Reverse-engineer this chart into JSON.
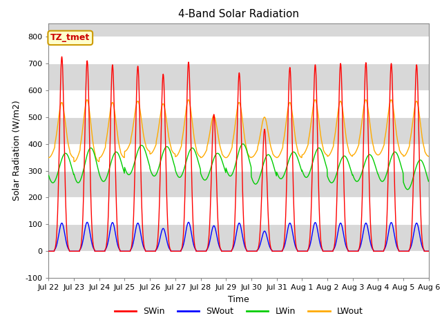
{
  "title": "4-Band Solar Radiation",
  "xlabel": "Time",
  "ylabel": "Solar Radiation (W/m2)",
  "ylim": [
    -100,
    850
  ],
  "yticks": [
    -100,
    0,
    100,
    200,
    300,
    400,
    500,
    600,
    700,
    800
  ],
  "x_tick_labels": [
    "Jul 22",
    "Jul 23",
    "Jul 24",
    "Jul 25",
    "Jul 26",
    "Jul 27",
    "Jul 28",
    "Jul 29",
    "Jul 30",
    "Jul 31",
    "Aug 1",
    "Aug 2",
    "Aug 3",
    "Aug 4",
    "Aug 5",
    "Aug 6"
  ],
  "colors": {
    "SWin": "#ff0000",
    "SWout": "#0000ff",
    "LWin": "#00cc00",
    "LWout": "#ffaa00"
  },
  "annotation_text": "TZ_tmet",
  "annotation_color": "#cc0000",
  "annotation_bg": "#ffffcc",
  "annotation_border": "#cc9900",
  "plot_bg_light": "#d8d8d8",
  "plot_bg_dark": "#c8c8c8",
  "grid_color": "#ffffff",
  "n_days": 15,
  "dt_hours": 0.25,
  "swin_peaks": [
    725,
    710,
    695,
    690,
    660,
    705,
    510,
    665,
    455,
    685,
    695,
    700,
    703,
    700,
    695
  ],
  "swout_peaks": [
    105,
    108,
    107,
    105,
    85,
    108,
    95,
    105,
    75,
    105,
    107,
    105,
    105,
    107,
    105
  ],
  "lwout_base": [
    390,
    380,
    390,
    410,
    400,
    395,
    380,
    390,
    380,
    390,
    400,
    395,
    400,
    400,
    395
  ],
  "lwout_amp": [
    165,
    185,
    165,
    150,
    150,
    170,
    125,
    165,
    120,
    165,
    165,
    165,
    165,
    165,
    165
  ],
  "lwin_base": [
    310,
    320,
    315,
    340,
    335,
    330,
    315,
    340,
    305,
    320,
    330,
    305,
    310,
    315,
    285
  ],
  "lwin_amp": [
    55,
    65,
    55,
    55,
    55,
    55,
    50,
    60,
    55,
    50,
    55,
    50,
    50,
    55,
    55
  ]
}
